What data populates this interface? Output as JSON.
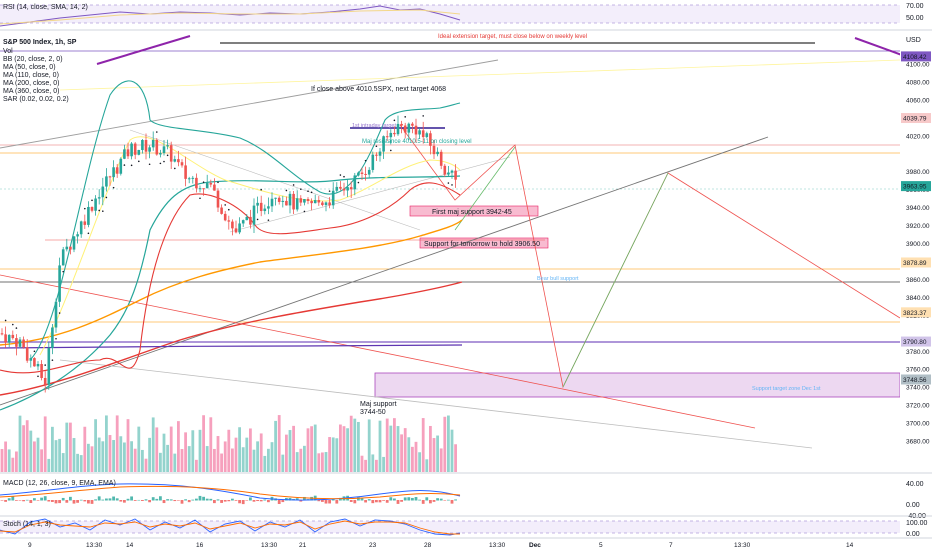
{
  "rsi": {
    "label": "RSI (14, close, SMA, 14, 2)",
    "ticks": [
      "70.00",
      "50.00"
    ]
  },
  "main": {
    "symbol": "S&P 500 Index, 1h, SP",
    "currency": "USD",
    "indicators": [
      "Vol",
      "BB (20, close, 2, 0)",
      "MA (50, close, 0)",
      "MA (110, close, 0)",
      "MA (200, close, 0)",
      "MA (360, close, 0)",
      "SAR (0.02, 0.02, 0.2)"
    ]
  },
  "annotations": {
    "ideal_ext": "Ideal extension target, must close below on weekly level",
    "close_above": "If close above 4010.5SPX, next target 4068",
    "intraday": "1st intraday target",
    "maj_res": "Maj resistance 4010.5-11 on closing level",
    "first_support": "First maj support 3942-45",
    "hold_support": "Support for tomorrow to hold 3906.50",
    "bear_bull": "Bear bull support",
    "target_zone": "Support target zone Dec 1st",
    "maj_support_1": "Maj support",
    "maj_support_2": "3744-50"
  },
  "macd": {
    "label": "MACD (12, 26, close, 9, EMA, EMA)",
    "ticks": [
      "40.00",
      "0.00",
      "-40.00"
    ]
  },
  "stoch": {
    "label": "Stoch (14, 1, 3)",
    "ticks": [
      "100.00",
      "0.00"
    ]
  },
  "x_axis": [
    "9",
    "13:30",
    "14",
    "16",
    "13:30",
    "21",
    "23",
    "28",
    "13:30",
    "Dec",
    "5",
    "7",
    "13:30",
    "14"
  ],
  "chart_data": {
    "type": "candlestick",
    "title": "S&P 500 Index, 1h, SP",
    "y_range": [
      3660,
      4120
    ],
    "y_ticks": [
      4100,
      4080,
      4060,
      4040,
      4020,
      3980,
      3960,
      3940,
      3920,
      3900,
      3860,
      3840,
      3820,
      3780,
      3760,
      3740,
      3720,
      3700,
      3680
    ],
    "price_badges": [
      {
        "value": "4108.42",
        "color": "#7e57c2"
      },
      {
        "value": "4039.79",
        "color": "#f7c9c9"
      },
      {
        "value": "3963.95",
        "color": "#26a69a"
      },
      {
        "value": "3878.89",
        "color": "#ffe0b2"
      },
      {
        "value": "3823.37",
        "color": "#ffe0b2"
      },
      {
        "value": "3790.80",
        "color": "#d1c4e9"
      },
      {
        "value": "3748.56",
        "color": "#b0bec5"
      }
    ],
    "levels": [
      3878.89,
      3823.37,
      3790.8,
      4039.79,
      3748.56
    ],
    "colors": {
      "up": "#26a69a",
      "down": "#ef5350"
    }
  }
}
